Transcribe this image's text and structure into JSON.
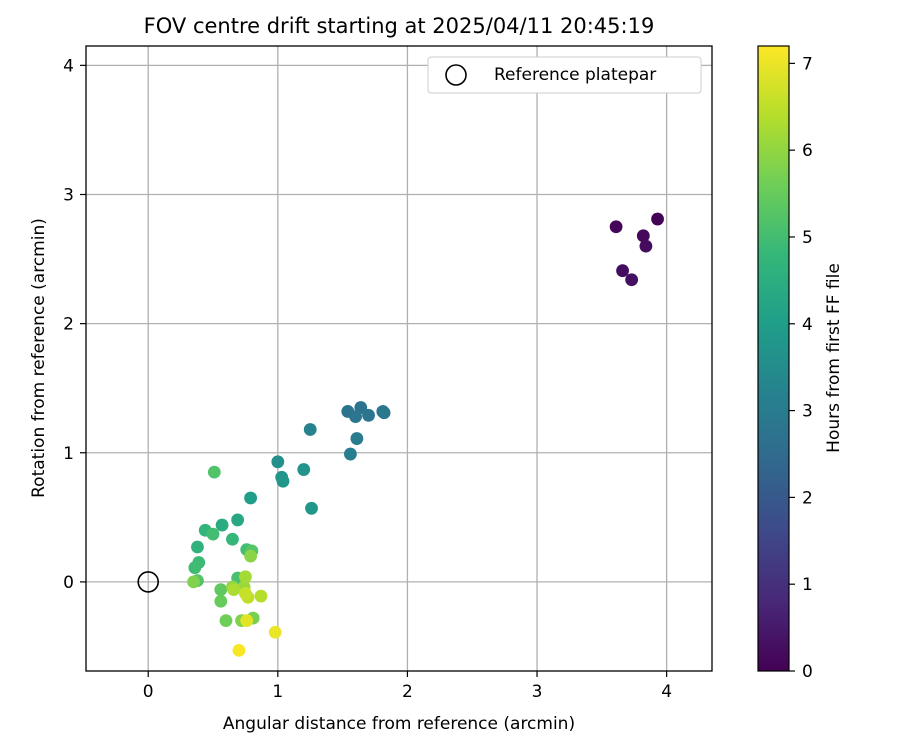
{
  "chart_data": {
    "type": "scatter",
    "title": "FOV centre drift starting at 2025/04/11 20:45:19",
    "xlabel": "Angular distance from reference (arcmin)",
    "ylabel": "Rotation from reference (arcmin)",
    "colorbar_label": "Hours from first FF file",
    "xlim": [
      -0.48,
      4.35
    ],
    "ylim": [
      -0.69,
      4.15
    ],
    "x_ticks": [
      0,
      1,
      2,
      3,
      4
    ],
    "y_ticks": [
      0,
      1,
      2,
      3,
      4
    ],
    "colorbar_range": [
      0,
      7.2
    ],
    "colorbar_ticks": [
      0,
      1,
      2,
      3,
      4,
      5,
      6,
      7
    ],
    "colormap": "viridis",
    "grid": true,
    "legend_position": "top-right",
    "legend": [
      {
        "label": "Reference platepar",
        "marker": "open-circle"
      }
    ],
    "reference_point": {
      "x": 0,
      "y": 0
    },
    "points": [
      {
        "x": 3.93,
        "y": 2.81,
        "t": 0.05
      },
      {
        "x": 3.61,
        "y": 2.75,
        "t": 0.1
      },
      {
        "x": 3.82,
        "y": 2.68,
        "t": 0.15
      },
      {
        "x": 3.84,
        "y": 2.6,
        "t": 0.2
      },
      {
        "x": 3.66,
        "y": 2.41,
        "t": 0.25
      },
      {
        "x": 3.73,
        "y": 2.34,
        "t": 0.3
      },
      {
        "x": 1.54,
        "y": 1.32,
        "t": 2.75
      },
      {
        "x": 1.64,
        "y": 1.35,
        "t": 2.78
      },
      {
        "x": 1.6,
        "y": 1.28,
        "t": 2.8
      },
      {
        "x": 1.7,
        "y": 1.29,
        "t": 2.82
      },
      {
        "x": 1.82,
        "y": 1.31,
        "t": 2.85
      },
      {
        "x": 1.81,
        "y": 1.32,
        "t": 2.85
      },
      {
        "x": 1.61,
        "y": 1.11,
        "t": 3.0
      },
      {
        "x": 1.56,
        "y": 0.99,
        "t": 3.05
      },
      {
        "x": 1.25,
        "y": 1.18,
        "t": 3.2
      },
      {
        "x": 1.0,
        "y": 0.93,
        "t": 3.6
      },
      {
        "x": 1.2,
        "y": 0.87,
        "t": 3.7
      },
      {
        "x": 1.03,
        "y": 0.81,
        "t": 3.75
      },
      {
        "x": 1.04,
        "y": 0.78,
        "t": 3.8
      },
      {
        "x": 1.26,
        "y": 0.57,
        "t": 3.8
      },
      {
        "x": 0.79,
        "y": 0.65,
        "t": 4.0
      },
      {
        "x": 0.69,
        "y": 0.48,
        "t": 4.3
      },
      {
        "x": 0.57,
        "y": 0.44,
        "t": 4.4
      },
      {
        "x": 0.38,
        "y": 0.27,
        "t": 4.6
      },
      {
        "x": 0.44,
        "y": 0.4,
        "t": 4.7
      },
      {
        "x": 0.65,
        "y": 0.33,
        "t": 4.8
      },
      {
        "x": 0.39,
        "y": 0.15,
        "t": 4.9
      },
      {
        "x": 0.36,
        "y": 0.11,
        "t": 4.95
      },
      {
        "x": 0.5,
        "y": 0.37,
        "t": 5.0
      },
      {
        "x": 0.76,
        "y": 0.25,
        "t": 5.0
      },
      {
        "x": 0.69,
        "y": 0.03,
        "t": 5.1
      },
      {
        "x": 0.38,
        "y": 0.01,
        "t": 5.2
      },
      {
        "x": 0.51,
        "y": 0.85,
        "t": 5.2
      },
      {
        "x": 0.8,
        "y": 0.24,
        "t": 5.25
      },
      {
        "x": 0.56,
        "y": -0.06,
        "t": 5.4
      },
      {
        "x": 0.56,
        "y": -0.15,
        "t": 5.5
      },
      {
        "x": 0.6,
        "y": -0.3,
        "t": 5.6
      },
      {
        "x": 0.81,
        "y": -0.28,
        "t": 5.7
      },
      {
        "x": 0.72,
        "y": -0.3,
        "t": 5.8
      },
      {
        "x": 0.35,
        "y": 0.0,
        "t": 5.8
      },
      {
        "x": 0.79,
        "y": 0.2,
        "t": 5.9
      },
      {
        "x": 0.65,
        "y": -0.04,
        "t": 6.0
      },
      {
        "x": 0.74,
        "y": -0.04,
        "t": 6.1
      },
      {
        "x": 0.75,
        "y": 0.04,
        "t": 6.2
      },
      {
        "x": 0.66,
        "y": -0.06,
        "t": 6.3
      },
      {
        "x": 0.87,
        "y": -0.11,
        "t": 6.4
      },
      {
        "x": 0.77,
        "y": -0.12,
        "t": 6.5
      },
      {
        "x": 0.75,
        "y": -0.09,
        "t": 6.6
      },
      {
        "x": 0.76,
        "y": -0.3,
        "t": 6.9
      },
      {
        "x": 0.98,
        "y": -0.39,
        "t": 7.0
      },
      {
        "x": 0.7,
        "y": -0.53,
        "t": 7.15
      }
    ]
  }
}
